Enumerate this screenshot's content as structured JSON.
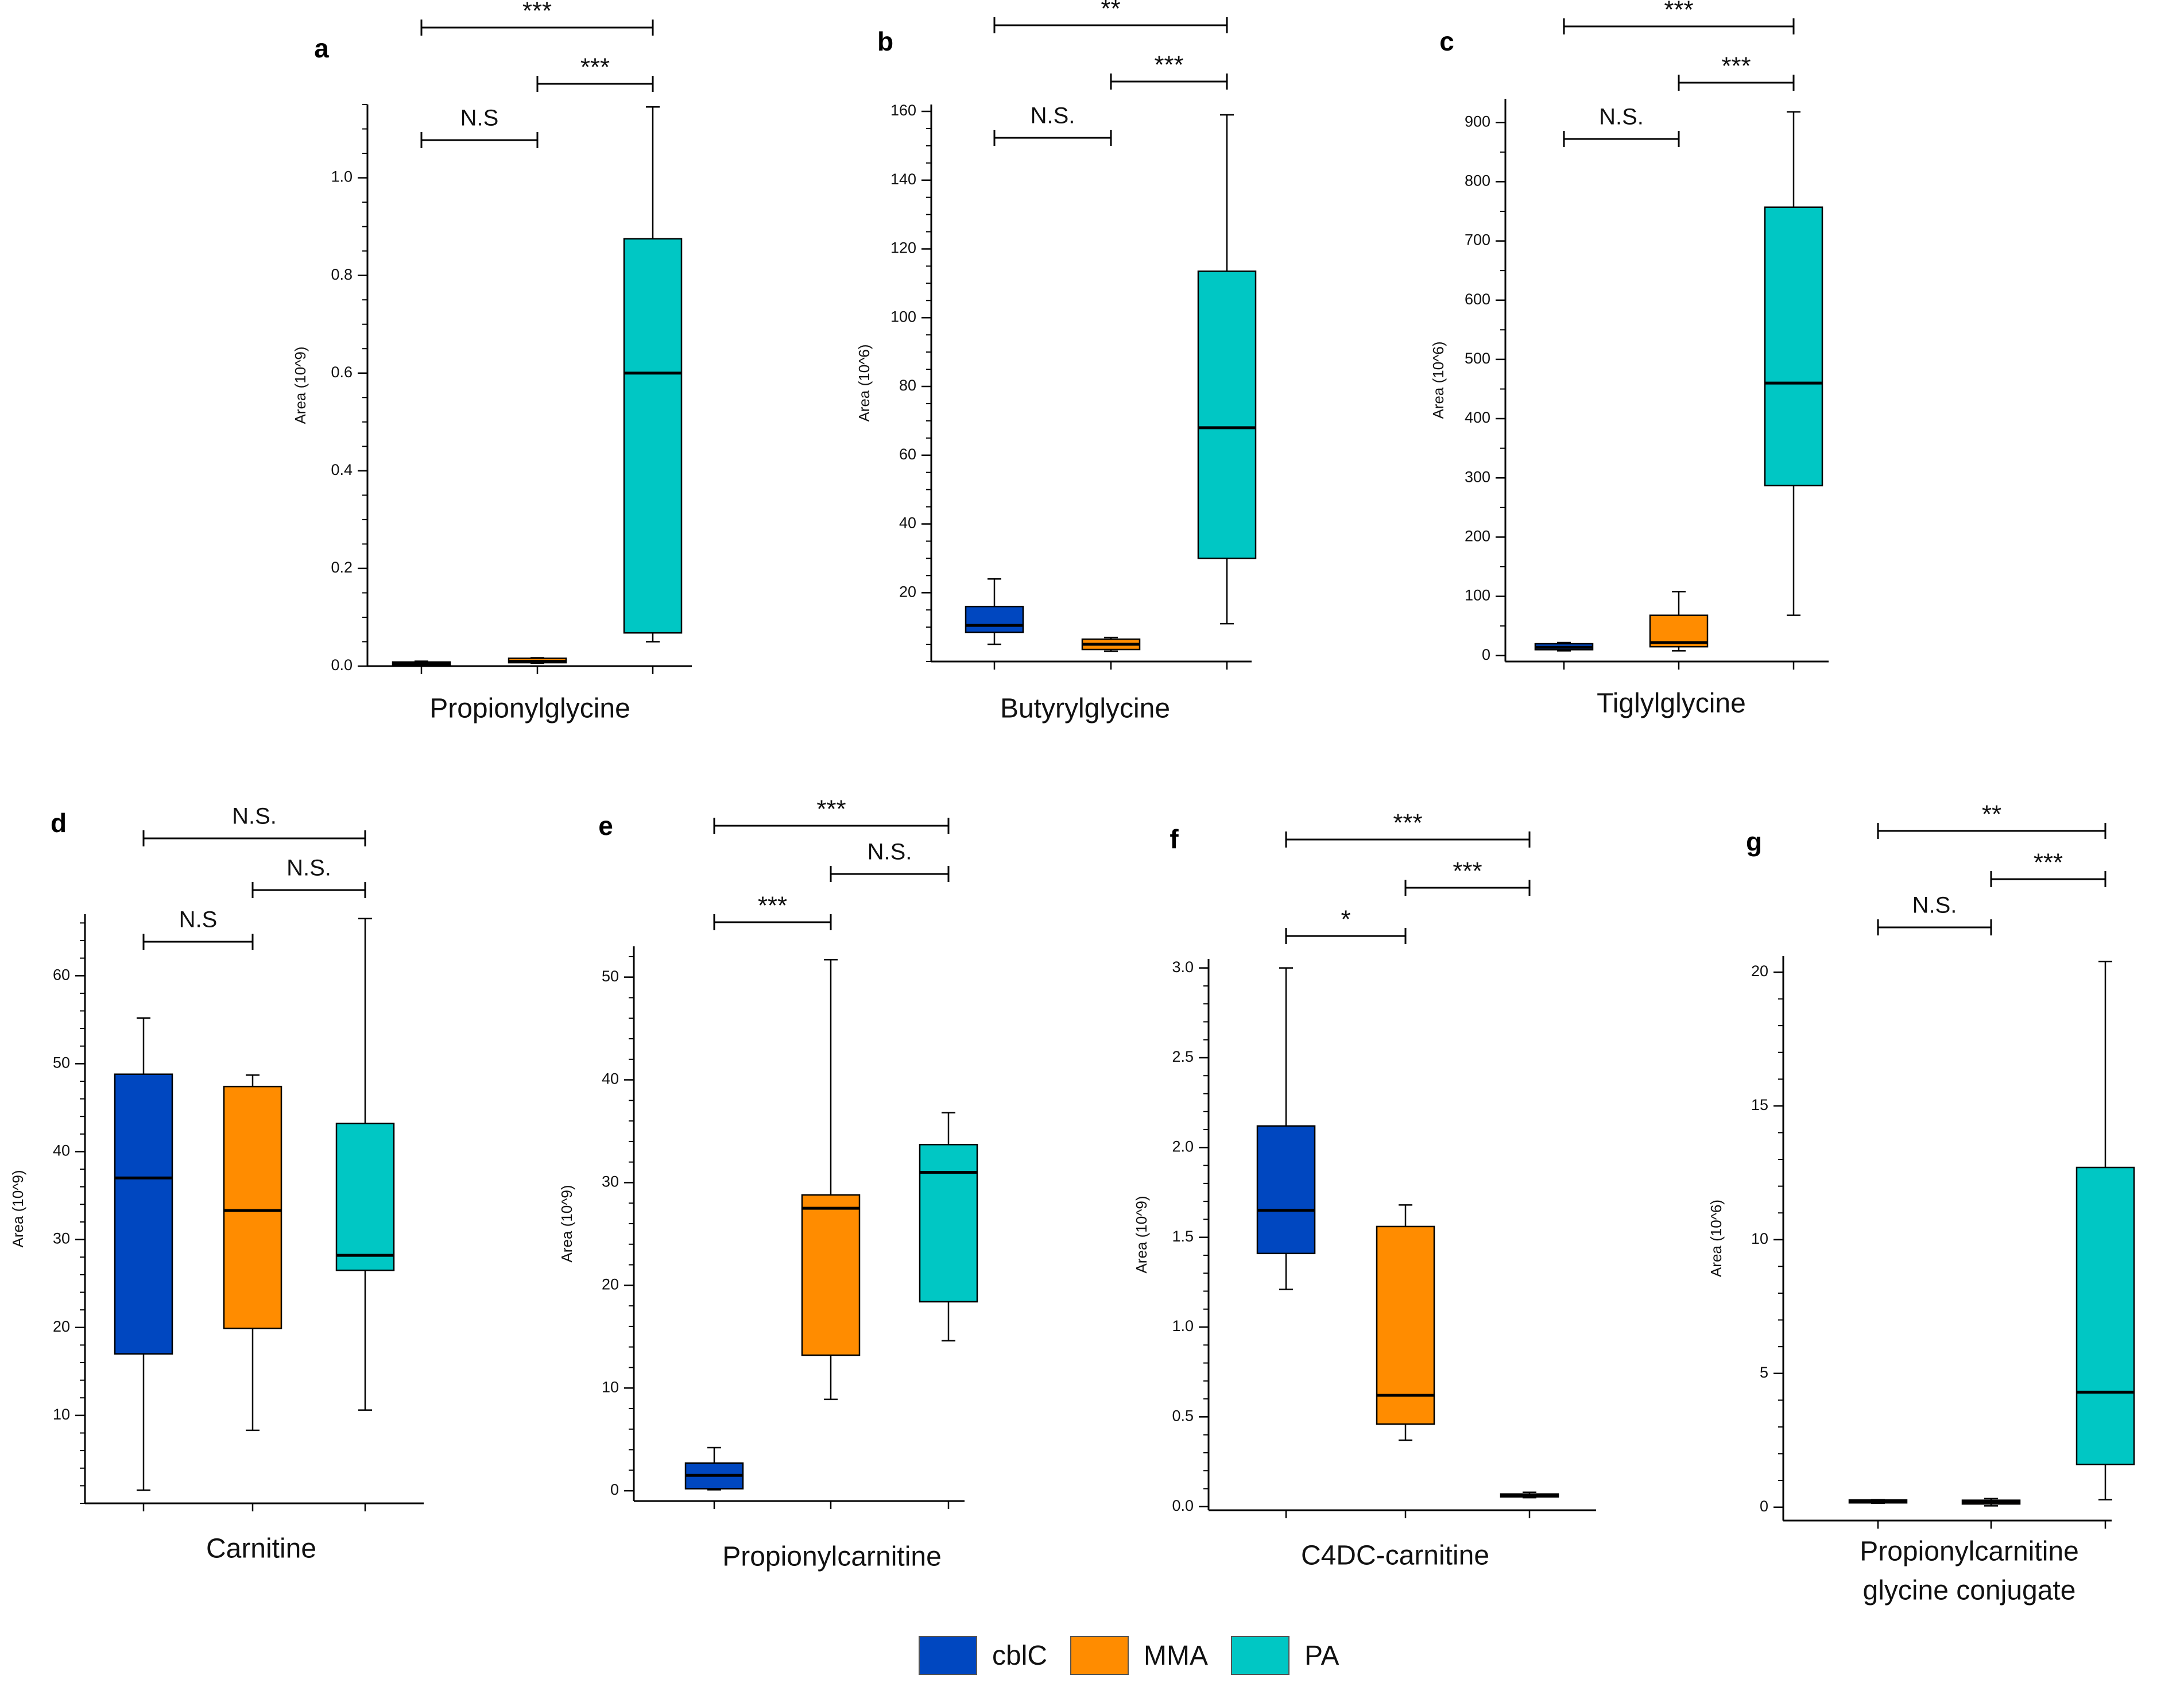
{
  "colors": {
    "cblC": "#0047c0",
    "MMA": "#ff8c00",
    "PA": "#00c7c4",
    "axis": "#000000",
    "median": "#000000"
  },
  "legend": [
    {
      "label": "cblC",
      "color": "#0047c0"
    },
    {
      "label": "MMA",
      "color": "#ff8c00"
    },
    {
      "label": "PA",
      "color": "#00c7c4"
    }
  ],
  "chart_data": [
    {
      "type": "box",
      "panel": "a",
      "xlabel": [
        "Propionylglycine"
      ],
      "ylabel": "Area (10^9)",
      "ylim": [
        0,
        1.15
      ],
      "yticks": [
        0.0,
        0.2,
        0.4,
        0.6,
        0.8,
        1.0
      ],
      "tick_labels": [
        "0.0",
        "0.2",
        "0.4",
        "0.6",
        "0.8",
        "1.0"
      ],
      "minor_step": 0.05,
      "groups": [
        {
          "name": "cblC",
          "min": 0.002,
          "q1": 0.003,
          "median": 0.005,
          "q3": 0.008,
          "max": 0.01
        },
        {
          "name": "MMA",
          "min": 0.006,
          "q1": 0.007,
          "median": 0.01,
          "q3": 0.016,
          "max": 0.017
        },
        {
          "name": "PA",
          "min": 0.05,
          "q1": 0.068,
          "median": 0.6,
          "q3": 0.875,
          "max": 1.145
        }
      ],
      "brackets": [
        {
          "from": 0,
          "to": 1,
          "label": "N.S",
          "level": 0
        },
        {
          "from": 1,
          "to": 2,
          "label": "***",
          "level": 1
        },
        {
          "from": 0,
          "to": 2,
          "label": "***",
          "level": 2
        }
      ]
    },
    {
      "type": "box",
      "panel": "b",
      "xlabel": [
        "Butyrylglycine"
      ],
      "ylabel": "Area (10^6)",
      "ylim": [
        0,
        162
      ],
      "yticks": [
        20,
        40,
        60,
        80,
        100,
        120,
        140,
        160
      ],
      "tick_labels": [
        "20",
        "40",
        "60",
        "80",
        "100",
        "120",
        "140",
        "160"
      ],
      "minor_step": 5,
      "groups": [
        {
          "name": "cblC",
          "min": 5,
          "q1": 8.5,
          "median": 10.5,
          "q3": 16,
          "max": 24
        },
        {
          "name": "MMA",
          "min": 3,
          "q1": 3.5,
          "median": 5,
          "q3": 6.5,
          "max": 7
        },
        {
          "name": "PA",
          "min": 11,
          "q1": 30,
          "median": 68,
          "q3": 113.5,
          "max": 159
        }
      ],
      "brackets": [
        {
          "from": 0,
          "to": 1,
          "label": "N.S.",
          "level": 0
        },
        {
          "from": 1,
          "to": 2,
          "label": "***",
          "level": 1
        },
        {
          "from": 0,
          "to": 2,
          "label": "**",
          "level": 2
        }
      ]
    },
    {
      "type": "box",
      "panel": "c",
      "xlabel": [
        "Tiglylglycine"
      ],
      "ylabel": "Area (10^6)",
      "ylim": [
        -10,
        940
      ],
      "yticks": [
        0,
        100,
        200,
        300,
        400,
        500,
        600,
        700,
        800,
        900
      ],
      "tick_labels": [
        "0",
        "100",
        "200",
        "300",
        "400",
        "500",
        "600",
        "700",
        "800",
        "900"
      ],
      "minor_step": 50,
      "groups": [
        {
          "name": "cblC",
          "min": 8,
          "q1": 10,
          "median": 14,
          "q3": 20,
          "max": 22
        },
        {
          "name": "MMA",
          "min": 8,
          "q1": 15,
          "median": 22,
          "q3": 68,
          "max": 108
        },
        {
          "name": "PA",
          "min": 68,
          "q1": 287,
          "median": 460,
          "q3": 757,
          "max": 918
        }
      ],
      "brackets": [
        {
          "from": 0,
          "to": 1,
          "label": "N.S.",
          "level": 0
        },
        {
          "from": 1,
          "to": 2,
          "label": "***",
          "level": 1
        },
        {
          "from": 0,
          "to": 2,
          "label": "***",
          "level": 2
        }
      ]
    },
    {
      "type": "box",
      "panel": "d",
      "xlabel": [
        "Carnitine"
      ],
      "ylabel": "Area (10^9)",
      "ylim": [
        0,
        67
      ],
      "yticks": [
        10,
        20,
        30,
        40,
        50,
        60
      ],
      "tick_labels": [
        "10",
        "20",
        "30",
        "40",
        "50",
        "60"
      ],
      "minor_step": 2,
      "groups": [
        {
          "name": "cblC",
          "min": 1.5,
          "q1": 17,
          "median": 37,
          "q3": 48.8,
          "max": 55.2
        },
        {
          "name": "MMA",
          "min": 8.3,
          "q1": 19.9,
          "median": 33.3,
          "q3": 47.4,
          "max": 48.7
        },
        {
          "name": "PA",
          "min": 10.6,
          "q1": 26.5,
          "median": 28.2,
          "q3": 43.2,
          "max": 66.5
        }
      ],
      "brackets": [
        {
          "from": 0,
          "to": 1,
          "label": "N.S",
          "level": 0
        },
        {
          "from": 1,
          "to": 2,
          "label": "N.S.",
          "level": 1
        },
        {
          "from": 0,
          "to": 2,
          "label": "N.S.",
          "level": 2
        }
      ]
    },
    {
      "type": "box",
      "panel": "e",
      "xlabel": [
        "Propionylcarnitine"
      ],
      "ylabel": "Area (10^9)",
      "ylim": [
        -1,
        53
      ],
      "yticks": [
        0,
        10,
        20,
        30,
        40,
        50
      ],
      "tick_labels": [
        "0",
        "10",
        "20",
        "30",
        "40",
        "50"
      ],
      "minor_step": 2,
      "groups": [
        {
          "name": "cblC",
          "min": 0.1,
          "q1": 0.2,
          "median": 1.5,
          "q3": 2.7,
          "max": 4.2
        },
        {
          "name": "MMA",
          "min": 8.9,
          "q1": 13.2,
          "median": 27.5,
          "q3": 28.8,
          "max": 51.7
        },
        {
          "name": "PA",
          "min": 14.6,
          "q1": 18.4,
          "median": 31,
          "q3": 33.7,
          "max": 36.8
        }
      ],
      "brackets": [
        {
          "from": 0,
          "to": 1,
          "label": "***",
          "level": 0
        },
        {
          "from": 1,
          "to": 2,
          "label": "N.S.",
          "level": 1
        },
        {
          "from": 0,
          "to": 2,
          "label": "***",
          "level": 2
        }
      ]
    },
    {
      "type": "box",
      "panel": "f",
      "xlabel": [
        "C4DC-carnitine"
      ],
      "ylabel": "Area (10^9)",
      "ylim": [
        -0.02,
        3.05
      ],
      "yticks": [
        0.0,
        0.5,
        1.0,
        1.5,
        2.0,
        2.5,
        3.0
      ],
      "tick_labels": [
        "0.0",
        "0.5",
        "1.0",
        "1.5",
        "2.0",
        "2.5",
        "3.0"
      ],
      "minor_step": 0.1,
      "groups": [
        {
          "name": "cblC",
          "min": 1.21,
          "q1": 1.41,
          "median": 1.65,
          "q3": 2.12,
          "max": 3.0
        },
        {
          "name": "MMA",
          "min": 0.37,
          "q1": 0.46,
          "median": 0.62,
          "q3": 1.56,
          "max": 1.68
        },
        {
          "name": "PA",
          "min": 0.05,
          "q1": 0.055,
          "median": 0.065,
          "q3": 0.07,
          "max": 0.08
        }
      ],
      "brackets": [
        {
          "from": 0,
          "to": 1,
          "label": "*",
          "level": 0
        },
        {
          "from": 1,
          "to": 2,
          "label": "***",
          "level": 1
        },
        {
          "from": 0,
          "to": 2,
          "label": "***",
          "level": 2
        }
      ]
    },
    {
      "type": "box",
      "panel": "g",
      "xlabel": [
        "Propionylcarnitine",
        "glycine conjugate"
      ],
      "ylabel": "Area (10^6)",
      "ylim": [
        -0.5,
        20.6
      ],
      "yticks": [
        0,
        5,
        10,
        15,
        20
      ],
      "tick_labels": [
        "0",
        "5",
        "10",
        "15",
        "20"
      ],
      "minor_step": 1,
      "groups": [
        {
          "name": "cblC",
          "min": 0.15,
          "q1": 0.18,
          "median": 0.22,
          "q3": 0.25,
          "max": 0.28
        },
        {
          "name": "MMA",
          "min": 0.05,
          "q1": 0.12,
          "median": 0.2,
          "q3": 0.26,
          "max": 0.32
        },
        {
          "name": "PA",
          "min": 0.28,
          "q1": 1.6,
          "median": 4.3,
          "q3": 12.7,
          "max": 20.4
        }
      ],
      "brackets": [
        {
          "from": 0,
          "to": 1,
          "label": "N.S.",
          "level": 0
        },
        {
          "from": 1,
          "to": 2,
          "label": "***",
          "level": 1
        },
        {
          "from": 0,
          "to": 2,
          "label": "**",
          "level": 2
        }
      ]
    }
  ]
}
